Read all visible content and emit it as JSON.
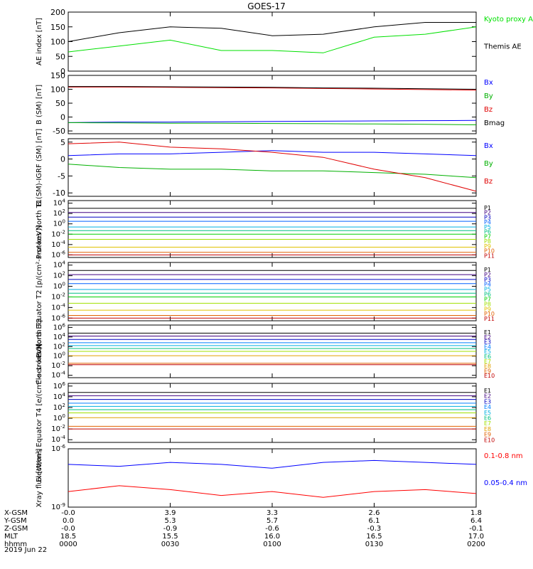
{
  "title": "GOES-17",
  "footer": {
    "rows": [
      {
        "label": "X-GSM",
        "values": [
          "-0.0",
          "3.9",
          "3.3",
          "2.6",
          "1.8"
        ]
      },
      {
        "label": "Y-GSM",
        "values": [
          "0.0",
          "5.3",
          "5.7",
          "6.1",
          "6.4"
        ]
      },
      {
        "label": "Z-GSM",
        "values": [
          "-0.0",
          "-0.9",
          "-0.6",
          "-0.3",
          "-0.1"
        ]
      },
      {
        "label": "MLT",
        "values": [
          "18.5",
          "15.5",
          "16.0",
          "16.5",
          "17.0"
        ]
      },
      {
        "label": "hhmm",
        "values": [
          "0000",
          "0030",
          "0100",
          "0130",
          "0200"
        ]
      }
    ],
    "date": "2019 Jun 22"
  },
  "chart_data": [
    {
      "type": "line",
      "ylabel": "AE index [nT]",
      "ylim": [
        0,
        200
      ],
      "yticks": [
        "0",
        "50",
        "100",
        "150",
        "200"
      ],
      "x_label": "hhmm",
      "x": [
        "0000",
        "0015",
        "0030",
        "0045",
        "0100",
        "0115",
        "0130",
        "0145",
        "0200"
      ],
      "series": [
        {
          "name": "Kyoto proxy AE",
          "color": "#00e000",
          "values": [
            65,
            85,
            105,
            70,
            70,
            62,
            115,
            125,
            150
          ]
        },
        {
          "name": "Themis AE",
          "color": "#000000",
          "values": [
            100,
            130,
            150,
            145,
            120,
            125,
            150,
            165,
            165
          ]
        }
      ]
    },
    {
      "type": "line",
      "ylabel": "B (SM) [nT]",
      "ylim": [
        -60,
        150
      ],
      "yticks": [
        "-50",
        "0",
        "50",
        "100",
        "150"
      ],
      "x": [
        "0000",
        "0015",
        "0030",
        "0045",
        "0100",
        "0115",
        "0130",
        "0145",
        "0200"
      ],
      "series": [
        {
          "name": "Bx",
          "color": "#0000ff",
          "values": [
            -20,
            -18,
            -18,
            -17,
            -16,
            -15,
            -14,
            -13,
            -12
          ]
        },
        {
          "name": "By",
          "color": "#00b000",
          "values": [
            -20,
            -21,
            -22,
            -22,
            -23,
            -24,
            -25,
            -26,
            -28
          ]
        },
        {
          "name": "Bz",
          "color": "#e00000",
          "values": [
            108,
            108,
            107,
            106,
            105,
            103,
            101,
            99,
            97
          ]
        },
        {
          "name": "Bmag",
          "color": "#000000",
          "values": [
            110,
            110,
            109,
            108,
            107,
            105,
            104,
            102,
            100
          ]
        }
      ]
    },
    {
      "type": "line",
      "ylabel": "B (SM)-IGRF (SM) [nT]",
      "ylim": [
        -11,
        6
      ],
      "yticks": [
        "-10",
        "-5",
        "0",
        "5"
      ],
      "x": [
        "0000",
        "0015",
        "0030",
        "0045",
        "0100",
        "0115",
        "0130",
        "0145",
        "0200"
      ],
      "series": [
        {
          "name": "Bx",
          "color": "#0000ff",
          "values": [
            1,
            1.5,
            1.5,
            2,
            2.5,
            2,
            2,
            1.5,
            1
          ]
        },
        {
          "name": "By",
          "color": "#00b000",
          "values": [
            -1.5,
            -2.5,
            -3,
            -3,
            -3.5,
            -3.5,
            -4,
            -4.5,
            -5.5
          ]
        },
        {
          "name": "Bz",
          "color": "#e00000",
          "values": [
            4.5,
            5,
            3.5,
            3,
            2,
            0.5,
            -3,
            -5.5,
            -9.5
          ]
        }
      ]
    },
    {
      "type": "line",
      "ylabel": "Protons North T1",
      "yscale": "log",
      "ylim": [
        -6.5,
        4.5
      ],
      "ytick_exponents": [
        -6,
        -4,
        -2,
        0,
        2,
        4
      ],
      "x": [
        "0000",
        "0200"
      ],
      "series": [
        {
          "name": "P1",
          "color": "#000000",
          "log10_values": [
            3,
            3
          ]
        },
        {
          "name": "P2",
          "color": "#400080",
          "log10_values": [
            2.2,
            2.2
          ]
        },
        {
          "name": "P3",
          "color": "#0000c0",
          "log10_values": [
            1.3,
            1.3
          ]
        },
        {
          "name": "P4",
          "color": "#0060ff",
          "log10_values": [
            0.5,
            0.5
          ]
        },
        {
          "name": "P5",
          "color": "#00b0e0",
          "log10_values": [
            -0.6,
            -0.6
          ]
        },
        {
          "name": "P6",
          "color": "#00c080",
          "log10_values": [
            -1.3,
            -1.3
          ]
        },
        {
          "name": "P7",
          "color": "#00d000",
          "log10_values": [
            -2,
            -2
          ]
        },
        {
          "name": "P8",
          "color": "#a0e000",
          "log10_values": [
            -3,
            -3
          ]
        },
        {
          "name": "P9",
          "color": "#e0c000",
          "log10_values": [
            -4.5,
            -4.5
          ]
        },
        {
          "name": "P10",
          "color": "#e06000",
          "log10_values": [
            -5.5,
            -5.5
          ]
        },
        {
          "name": "P11",
          "color": "#c00000",
          "log10_values": [
            -6,
            -6
          ]
        }
      ]
    },
    {
      "type": "line",
      "ylabel": "Protons Equator T2 [p/(cm²-s-sr-keV)]",
      "yscale": "log",
      "ylim": [
        -6.5,
        4.5
      ],
      "ytick_exponents": [
        -6,
        -4,
        -2,
        0,
        2,
        4
      ],
      "x": [
        "0000",
        "0200"
      ],
      "series": [
        {
          "name": "P1",
          "color": "#000000",
          "log10_values": [
            3,
            3
          ]
        },
        {
          "name": "P2",
          "color": "#400080",
          "log10_values": [
            2.2,
            2.2
          ]
        },
        {
          "name": "P3",
          "color": "#0000c0",
          "log10_values": [
            1.3,
            1.3
          ]
        },
        {
          "name": "P4",
          "color": "#0060ff",
          "log10_values": [
            0.5,
            0.5
          ]
        },
        {
          "name": "P5",
          "color": "#00b0e0",
          "log10_values": [
            -0.6,
            -0.6
          ]
        },
        {
          "name": "P6",
          "color": "#00c080",
          "log10_values": [
            -1.3,
            -1.3
          ]
        },
        {
          "name": "P7",
          "color": "#00d000",
          "log10_values": [
            -2,
            -2
          ]
        },
        {
          "name": "P8",
          "color": "#a0e000",
          "log10_values": [
            -3.2,
            -3.2
          ]
        },
        {
          "name": "P9",
          "color": "#e0c000",
          "log10_values": [
            -4.5,
            -4.5
          ]
        },
        {
          "name": "P10",
          "color": "#e06000",
          "log10_values": [
            -5.5,
            -5.5
          ]
        },
        {
          "name": "P11",
          "color": "#c00000",
          "log10_values": [
            -6,
            -6
          ]
        }
      ]
    },
    {
      "type": "line",
      "ylabel": "Electrons North T3",
      "yscale": "log",
      "ylim": [
        -4.5,
        6.5
      ],
      "ytick_exponents": [
        -4,
        -2,
        0,
        2,
        4,
        6
      ],
      "x": [
        "0000",
        "0200"
      ],
      "series": [
        {
          "name": "E1",
          "color": "#000000",
          "log10_values": [
            4.8,
            4.8
          ]
        },
        {
          "name": "E2",
          "color": "#400080",
          "log10_values": [
            4.2,
            4.2
          ]
        },
        {
          "name": "E3",
          "color": "#0000c0",
          "log10_values": [
            3.5,
            3.5
          ]
        },
        {
          "name": "E4",
          "color": "#0080ff",
          "log10_values": [
            2.8,
            2.8
          ]
        },
        {
          "name": "E5",
          "color": "#00b0e0",
          "log10_values": [
            2.2,
            2.2
          ]
        },
        {
          "name": "E6",
          "color": "#00c080",
          "log10_values": [
            1.6,
            1.6
          ]
        },
        {
          "name": "E7",
          "color": "#a0e000",
          "log10_values": [
            1,
            1
          ]
        },
        {
          "name": "E8",
          "color": "#e0a000",
          "log10_values": [
            0.1,
            0.1
          ]
        },
        {
          "name": "E9",
          "color": "#e06000",
          "log10_values": [
            -1.5,
            -1.5
          ]
        },
        {
          "name": "E10",
          "color": "#c00000",
          "log10_values": [
            -1.8,
            -1.8
          ]
        }
      ]
    },
    {
      "type": "line",
      "ylabel": "Electrons Equator T4 [e/(cm²-s-sr-keV)]",
      "yscale": "log",
      "ylim": [
        -4.5,
        6.5
      ],
      "ytick_exponents": [
        -4,
        -2,
        0,
        2,
        4,
        6
      ],
      "x": [
        "0000",
        "0200"
      ],
      "series": [
        {
          "name": "E1",
          "color": "#000000",
          "log10_values": [
            4.8,
            4.8
          ]
        },
        {
          "name": "E2",
          "color": "#400080",
          "log10_values": [
            4.2,
            4.2
          ]
        },
        {
          "name": "E3",
          "color": "#0000c0",
          "log10_values": [
            3.5,
            3.5
          ]
        },
        {
          "name": "E4",
          "color": "#0080ff",
          "log10_values": [
            2.8,
            2.8
          ]
        },
        {
          "name": "E5",
          "color": "#00b0e0",
          "log10_values": [
            2.2,
            2.2
          ]
        },
        {
          "name": "E6",
          "color": "#00c080",
          "log10_values": [
            1.6,
            1.6
          ]
        },
        {
          "name": "E7",
          "color": "#a0e000",
          "log10_values": [
            1,
            1
          ]
        },
        {
          "name": "E8",
          "color": "#e0a000",
          "log10_values": [
            0.1,
            0.1
          ]
        },
        {
          "name": "E9",
          "color": "#e06000",
          "log10_values": [
            -1.5,
            -1.5
          ]
        },
        {
          "name": "E10",
          "color": "#c00000",
          "log10_values": [
            -2,
            -2
          ]
        }
      ]
    },
    {
      "type": "line",
      "ylabel": "Xray flux [W/m²]",
      "yscale": "log",
      "ylim": [
        -9,
        -6
      ],
      "ytick_exponents": [
        -9,
        -6
      ],
      "x": [
        "0000",
        "0015",
        "0030",
        "0045",
        "0100",
        "0115",
        "0130",
        "0145",
        "0200"
      ],
      "series": [
        {
          "name": "0.1-0.8 nm",
          "color": "#ff0000",
          "log10_values": [
            -8.2,
            -7.9,
            -8.1,
            -8.4,
            -8.2,
            -8.5,
            -8.2,
            -8.1,
            -8.3
          ]
        },
        {
          "name": "0.05-0.4 nm",
          "color": "#0000ff",
          "log10_values": [
            -6.8,
            -6.9,
            -6.7,
            -6.8,
            -7.0,
            -6.7,
            -6.6,
            -6.7,
            -6.8
          ]
        }
      ]
    }
  ]
}
